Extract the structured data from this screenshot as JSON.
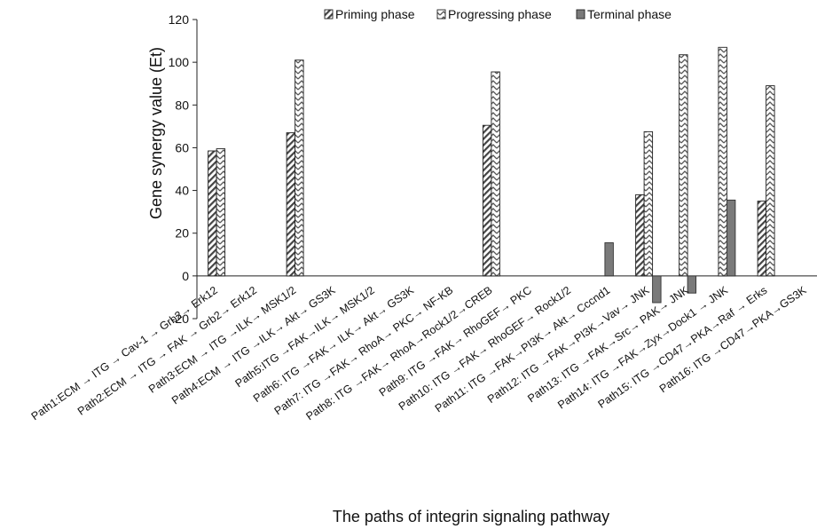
{
  "chart_data": {
    "type": "bar",
    "title": "",
    "xlabel": "The paths of integrin signaling pathway",
    "ylabel": "Gene synergy value (Et)",
    "ylim": [
      -20,
      120
    ],
    "yticks": [
      -20,
      0,
      20,
      40,
      60,
      80,
      100,
      120
    ],
    "legend_position": "top",
    "categories": [
      "Path1:ECM → ITG → Cav-1 → Grb2→ Erk12",
      "Path2:ECM → ITG → FAK → Grb2→ Erk12",
      "Path3:ECM → ITG →ILK→ MSK1/2",
      "Path4:ECM → ITG →ILK→ Akt→ GS3K",
      "Path5:ITG →FAK→ILK→ MSK1/2",
      "Path6: ITG →FAK→ ILK→ Akt→ GS3K",
      "Path7: ITG →FAK→ RhoA→ PKC→ NF-KB",
      "Path8: ITG →FAK→ RhoA→Rock1/2→CREB",
      "Path9: ITG →FAK→ RhoGEF→ PKC",
      "Path10: ITG →FAK→ RhoGEF→ Rock1/2",
      "Path11: ITG →FAK→PI3K→ Akt→ Cccnd1",
      "Path12: ITG →FAK→PI3K→Vav→ JNK",
      "Path13: ITG →FAK→Src→ PAK→ JNK",
      "Path14: ITG →FAK→Zyx→Dock1 → JNK",
      "Path15: ITG →CD47→PKA→Raf → Erks",
      "Path16: ITG →CD47→PKA→GS3K"
    ],
    "series": [
      {
        "name": "Priming phase",
        "pattern": "diagonal-hatch",
        "color": "#444444",
        "values": [
          58.5,
          null,
          67,
          null,
          null,
          null,
          null,
          70.5,
          null,
          null,
          null,
          38,
          null,
          null,
          35,
          null
        ]
      },
      {
        "name": "Progressing phase",
        "pattern": "zigzag-hatch",
        "color": "#555555",
        "values": [
          59.5,
          null,
          101,
          null,
          null,
          null,
          null,
          95.5,
          null,
          null,
          null,
          67.5,
          103.5,
          107,
          89,
          null
        ]
      },
      {
        "name": "Terminal phase",
        "pattern": "solid",
        "color": "#7a7a7a",
        "values": [
          null,
          null,
          null,
          null,
          null,
          null,
          null,
          null,
          null,
          null,
          15.5,
          -12.5,
          -8,
          35.5,
          null,
          null
        ]
      }
    ]
  }
}
